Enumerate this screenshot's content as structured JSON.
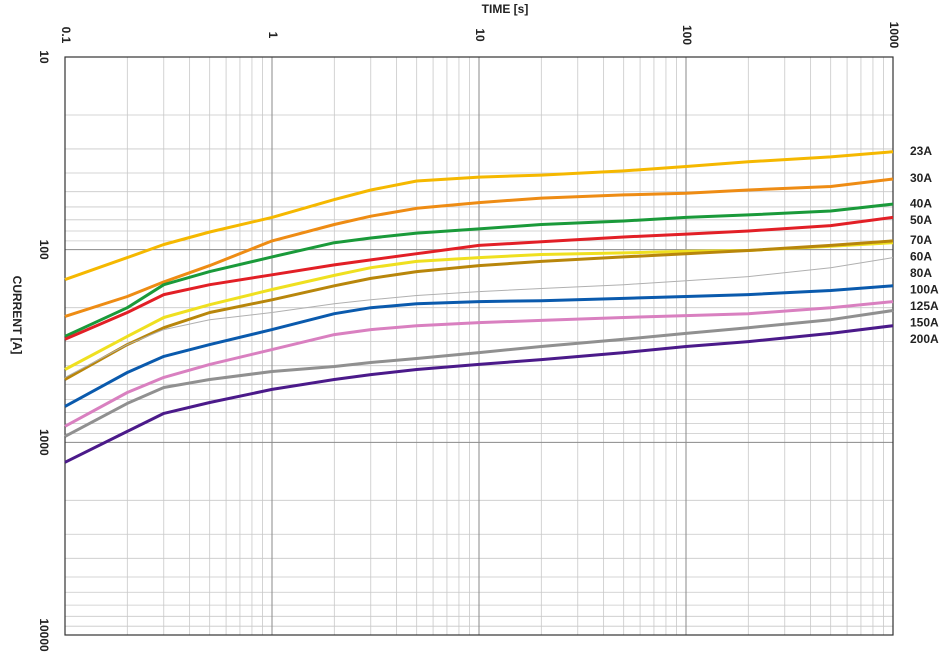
{
  "chart_data": {
    "type": "line",
    "x_label": "TIME [s]",
    "y_label": "CURRENT [A]",
    "x_scale": "log",
    "y_scale": "log",
    "y_inverted": true,
    "grid": true,
    "xlim": [
      0.1,
      1000
    ],
    "xticks": [
      0.1,
      1,
      10,
      100,
      1000
    ],
    "ylim": [
      10,
      10000
    ],
    "yticks": [
      10,
      100,
      1000,
      10000
    ],
    "x": [
      0.1,
      0.2,
      0.3,
      0.5,
      1,
      2,
      3,
      5,
      10,
      20,
      50,
      100,
      200,
      500,
      1000
    ],
    "series": [
      {
        "name": "23A",
        "color": "#f5b800",
        "values": [
          143,
          110,
          94,
          81,
          68,
          55,
          49,
          44,
          42,
          41,
          39,
          37,
          35,
          33,
          31
        ]
      },
      {
        "name": "30A",
        "color": "#ee8c14",
        "values": [
          222,
          175,
          147,
          121,
          90,
          74,
          67,
          61,
          57,
          54,
          52,
          51,
          49,
          47,
          43
        ]
      },
      {
        "name": "40A",
        "color": "#1a9a3a",
        "values": [
          282,
          200,
          152,
          130,
          109,
          92,
          87,
          82,
          78,
          74,
          71,
          68,
          66,
          63,
          58
        ]
      },
      {
        "name": "50A",
        "color": "#e21f26",
        "values": [
          292,
          212,
          171,
          152,
          135,
          120,
          113,
          105,
          95,
          91,
          86,
          83,
          80,
          75,
          68
        ]
      },
      {
        "name": "60A",
        "color": "#efe020",
        "values": [
          419,
          282,
          225,
          193,
          161,
          136,
          124,
          115,
          110,
          106,
          104,
          102,
          101,
          96,
          92
        ]
      },
      {
        "name": "70A",
        "color": "#b8860b",
        "values": [
          472,
          311,
          254,
          212,
          182,
          154,
          141,
          130,
          121,
          115,
          109,
          105,
          101,
          95,
          90
        ]
      },
      {
        "name": "80A",
        "color": "#b0b0b0",
        "values": [
          460,
          311,
          260,
          231,
          212,
          191,
          182,
          173,
          165,
          159,
          152,
          145,
          138,
          124,
          110
        ]
      },
      {
        "name": "100A",
        "color": "#0a5aad",
        "values": [
          651,
          434,
          358,
          311,
          260,
          215,
          200,
          191,
          186,
          184,
          179,
          175,
          171,
          163,
          154
        ]
      },
      {
        "name": "125A",
        "color": "#d980c0",
        "values": [
          826,
          551,
          460,
          394,
          330,
          276,
          260,
          248,
          239,
          233,
          225,
          220,
          215,
          200,
          186
        ]
      },
      {
        "name": "150A",
        "color": "#909090",
        "values": [
          931,
          628,
          519,
          472,
          429,
          404,
          385,
          367,
          342,
          318,
          292,
          272,
          254,
          231,
          207
        ]
      },
      {
        "name": "200A",
        "color": "#4b1a8a",
        "values": [
          1270,
          877,
          708,
          621,
          531,
          472,
          445,
          419,
          394,
          372,
          342,
          318,
          300,
          272,
          248
        ]
      }
    ]
  }
}
